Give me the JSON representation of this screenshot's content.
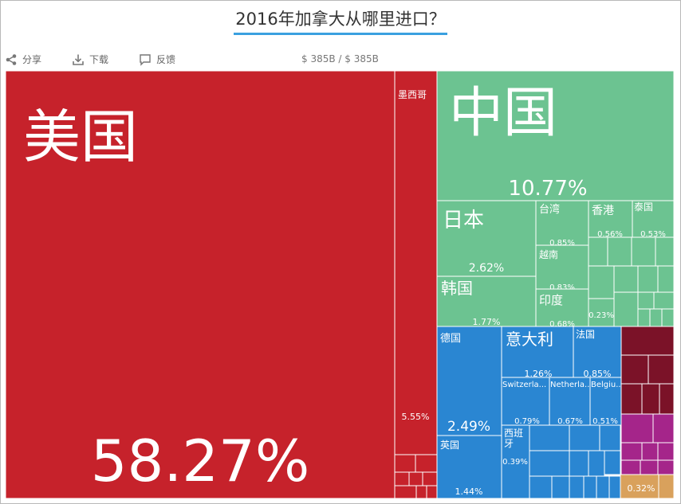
{
  "title": "2016年加拿大从哪里进口？",
  "toolbar": {
    "share_label": "分享",
    "download_label": "下载",
    "feedback_label": "反馈",
    "amount": "$ 385B / $ 385B"
  },
  "colors": {
    "americas": "#c6222b",
    "asia": "#6cc391",
    "europe": "#2a86d2",
    "africa": "#7b1228",
    "oceania": "#a5258a",
    "other": "#d9a15c",
    "title_underline": "#3aa0e0"
  },
  "chart_data": {
    "type": "treemap",
    "title": "2016年加拿大从哪里进口？",
    "total": "$ 385B",
    "items": [
      {
        "name": "美国",
        "share_pct": 58.27,
        "label": "58.27%",
        "region": "americas"
      },
      {
        "name": "墨西哥",
        "share_pct": 5.55,
        "label": "5.55%",
        "region": "americas"
      },
      {
        "name": "中国",
        "share_pct": 10.77,
        "label": "10.77%",
        "region": "asia"
      },
      {
        "name": "日本",
        "share_pct": 2.62,
        "label": "2.62%",
        "region": "asia"
      },
      {
        "name": "韩国",
        "share_pct": 1.77,
        "label": "1.77%",
        "region": "asia"
      },
      {
        "name": "台湾",
        "share_pct": 0.85,
        "label": "0.85%",
        "region": "asia"
      },
      {
        "name": "越南",
        "share_pct": 0.83,
        "label": "0.83%",
        "region": "asia"
      },
      {
        "name": "印度",
        "share_pct": 0.68,
        "label": "0.68%",
        "region": "asia"
      },
      {
        "name": "香港",
        "share_pct": 0.56,
        "label": "0.56%",
        "region": "asia"
      },
      {
        "name": "泰国",
        "share_pct": 0.53,
        "label": "0.53%",
        "region": "asia"
      },
      {
        "name": "",
        "share_pct": 0.23,
        "label": "0.23%",
        "region": "asia"
      },
      {
        "name": "德国",
        "share_pct": 2.49,
        "label": "2.49%",
        "region": "europe"
      },
      {
        "name": "意大利",
        "share_pct": 1.26,
        "label": "1.26%",
        "region": "europe"
      },
      {
        "name": "法国",
        "share_pct": 0.85,
        "label": "0.85%",
        "region": "europe"
      },
      {
        "name": "Switzerla...",
        "share_pct": 0.79,
        "label": "0.79%",
        "region": "europe"
      },
      {
        "name": "Netherla...",
        "share_pct": 0.67,
        "label": "0.67%",
        "region": "europe"
      },
      {
        "name": "Belgiu...",
        "share_pct": 0.51,
        "label": "0.51%",
        "region": "europe"
      },
      {
        "name": "英国",
        "share_pct": 1.44,
        "label": "1.44%",
        "region": "europe"
      },
      {
        "name": "西班牙",
        "share_pct": 0.39,
        "label": "0.39%",
        "region": "europe"
      },
      {
        "name": "",
        "share_pct": 0.32,
        "label": "0.32%",
        "region": "other"
      }
    ]
  }
}
